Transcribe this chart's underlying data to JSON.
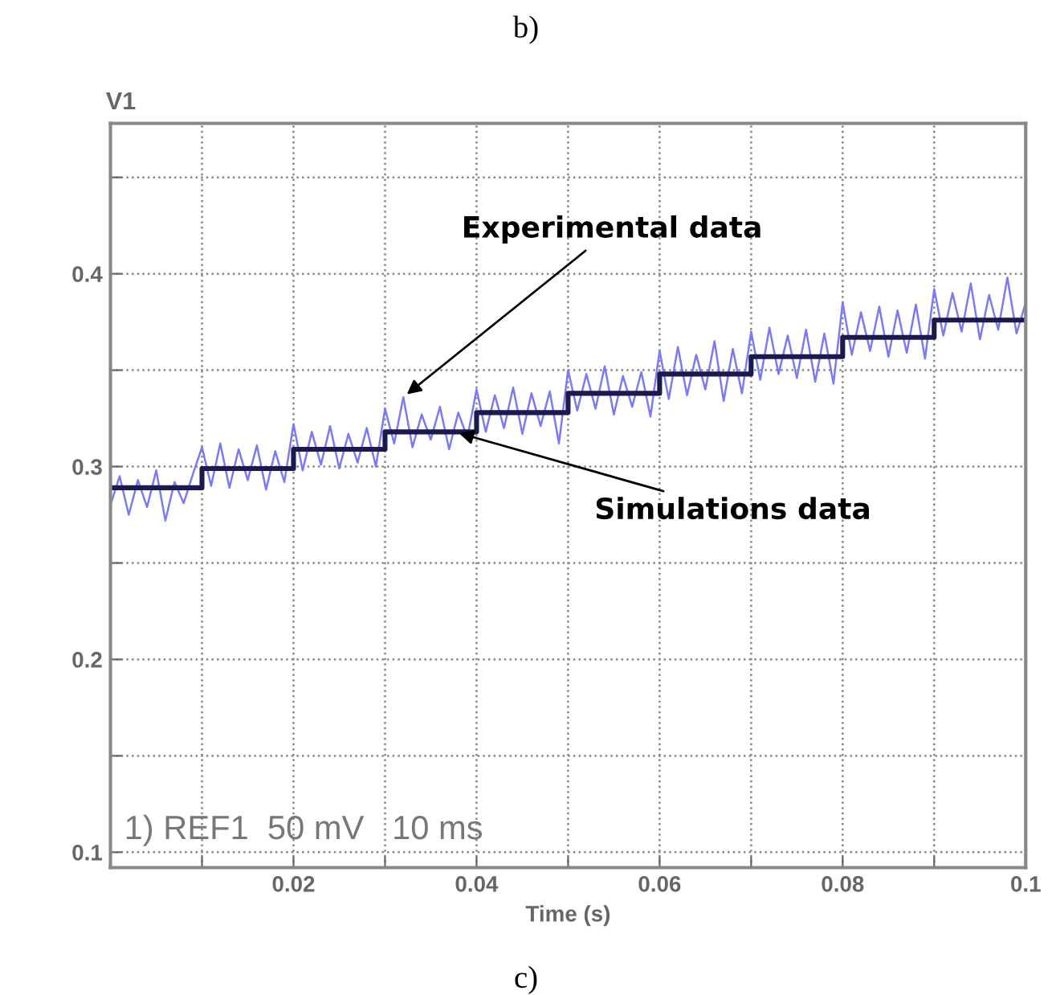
{
  "chart_data": {
    "type": "line",
    "ylabel": "V1",
    "xlabel": "Time (s)",
    "xlim": [
      0,
      0.1
    ],
    "ylim": [
      0.092,
      0.478
    ],
    "xticks": [
      {
        "value": 0.01,
        "label": null
      },
      0.02,
      {
        "value": 0.03,
        "label": null
      },
      0.04,
      {
        "value": 0.05,
        "label": null
      },
      0.06,
      {
        "value": 0.07,
        "label": null
      },
      0.08,
      {
        "value": 0.09,
        "label": null
      },
      0.1
    ],
    "yticks": [
      0.1,
      {
        "value": 0.15,
        "label": null
      },
      0.2,
      {
        "value": 0.25,
        "label": null
      },
      0.3,
      {
        "value": 0.35,
        "label": null
      },
      0.4,
      {
        "value": 0.45,
        "label": null
      }
    ],
    "grid": true,
    "line_style": "solid",
    "series": [
      {
        "type": "line",
        "color": "#7b7bf0",
        "x": [
          0,
          0.001,
          0.002,
          0.003,
          0.004,
          0.005,
          0.006,
          0.007,
          0.008,
          0.009,
          0.01,
          0.011,
          0.012,
          0.013,
          0.014,
          0.015,
          0.016,
          0.017,
          0.018,
          0.019,
          0.02,
          0.021,
          0.022,
          0.023,
          0.024,
          0.025,
          0.026,
          0.027,
          0.028,
          0.029,
          0.03,
          0.031,
          0.032,
          0.033,
          0.034,
          0.035,
          0.036,
          0.037,
          0.038,
          0.039,
          0.04,
          0.041,
          0.042,
          0.043,
          0.044,
          0.045,
          0.046,
          0.047,
          0.048,
          0.049,
          0.05,
          0.051,
          0.052,
          0.053,
          0.054,
          0.055,
          0.056,
          0.057,
          0.058,
          0.059,
          0.06,
          0.061,
          0.062,
          0.063,
          0.064,
          0.065,
          0.066,
          0.067,
          0.068,
          0.069,
          0.07,
          0.071,
          0.072,
          0.073,
          0.074,
          0.075,
          0.076,
          0.077,
          0.078,
          0.079,
          0.08,
          0.081,
          0.082,
          0.083,
          0.084,
          0.085,
          0.086,
          0.087,
          0.088,
          0.089,
          0.09,
          0.091,
          0.092,
          0.093,
          0.094,
          0.095,
          0.096,
          0.097,
          0.098,
          0.099,
          0.1
        ],
        "values": [
          0.28,
          0.295,
          0.275,
          0.293,
          0.279,
          0.298,
          0.272,
          0.292,
          0.281,
          0.296,
          0.31,
          0.29,
          0.312,
          0.289,
          0.309,
          0.293,
          0.311,
          0.288,
          0.308,
          0.292,
          0.322,
          0.298,
          0.318,
          0.301,
          0.321,
          0.299,
          0.317,
          0.302,
          0.32,
          0.3,
          0.33,
          0.312,
          0.336,
          0.31,
          0.327,
          0.314,
          0.331,
          0.309,
          0.328,
          0.315,
          0.34,
          0.318,
          0.337,
          0.32,
          0.341,
          0.317,
          0.338,
          0.321,
          0.339,
          0.312,
          0.35,
          0.329,
          0.348,
          0.33,
          0.352,
          0.327,
          0.347,
          0.331,
          0.349,
          0.326,
          0.36,
          0.335,
          0.362,
          0.337,
          0.358,
          0.34,
          0.365,
          0.334,
          0.361,
          0.338,
          0.37,
          0.345,
          0.372,
          0.348,
          0.368,
          0.346,
          0.371,
          0.344,
          0.369,
          0.343,
          0.385,
          0.358,
          0.38,
          0.36,
          0.383,
          0.357,
          0.381,
          0.359,
          0.384,
          0.356,
          0.392,
          0.368,
          0.39,
          0.37,
          0.395,
          0.366,
          0.389,
          0.371,
          0.398,
          0.369,
          0.385
        ]
      },
      {
        "type": "step",
        "color": "#1a1a50",
        "x": [
          0,
          0.01,
          0.02,
          0.03,
          0.04,
          0.05,
          0.06,
          0.07,
          0.08,
          0.09,
          0.1
        ],
        "values": [
          0.289,
          0.299,
          0.309,
          0.318,
          0.328,
          0.338,
          0.348,
          0.357,
          0.367,
          0.376,
          0.376
        ]
      }
    ],
    "annotations": [
      {
        "text": "Experimental data",
        "x": 0.032,
        "y": 0.336
      },
      {
        "text": "Simulations data",
        "x": 0.0376,
        "y": 0.318
      },
      "1) REF1  50 mV   10 ms",
      "b)",
      "c)"
    ]
  }
}
